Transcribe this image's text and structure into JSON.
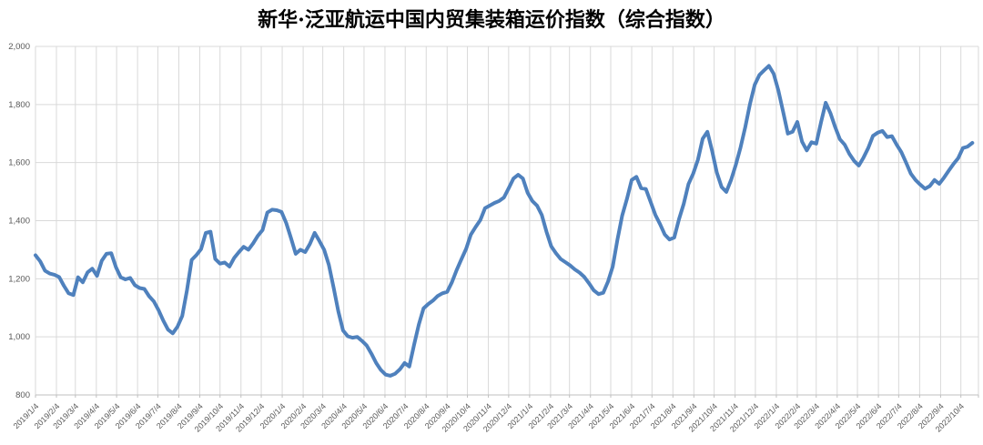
{
  "title": "新华·泛亚航运中国内贸集装箱运价指数（综合指数）",
  "colors": {
    "series_line": "#4f81bd",
    "gridline": "#d9d9d9",
    "axis_line": "#bfbfbf",
    "tick_label": "#595959",
    "title_text": "#000000",
    "background": "#ffffff"
  },
  "chart_data": {
    "type": "line",
    "title": "新华·泛亚航运中国内贸集装箱运价指数（综合指数）",
    "xlabel": "",
    "ylabel": "",
    "ylim": [
      800,
      2000
    ],
    "grid": true,
    "legend_position": "none",
    "y_ticks": [
      {
        "v": 2000,
        "label": "2,000"
      },
      {
        "v": 1800,
        "label": "1,800"
      },
      {
        "v": 1600,
        "label": "1,600"
      },
      {
        "v": 1400,
        "label": "1,400"
      },
      {
        "v": 1200,
        "label": "1,200"
      },
      {
        "v": 1000,
        "label": "1,000"
      },
      {
        "v": 800,
        "label": "800"
      }
    ],
    "x_ticks": [
      "2019/1/4",
      "2019/2/4",
      "2019/3/4",
      "2019/4/4",
      "2019/5/4",
      "2019/6/4",
      "2019/7/4",
      "2019/8/4",
      "2019/9/4",
      "2019/10/4",
      "2019/11/4",
      "2019/12/4",
      "2020/1/4",
      "2020/2/4",
      "2020/3/4",
      "2020/4/4",
      "2020/5/4",
      "2020/6/4",
      "2020/7/4",
      "2020/8/4",
      "2020/9/4",
      "2020/10/4",
      "2020/11/4",
      "2020/12/4",
      "2021/1/4",
      "2021/2/4",
      "2021/3/4",
      "2021/4/4",
      "2021/5/4",
      "2021/6/4",
      "2021/7/4",
      "2021/8/4",
      "2021/9/4",
      "2021/10/4",
      "2021/11/4",
      "2021/12/4",
      "2022/1/4",
      "2022/2/4",
      "2022/3/4",
      "2022/4/4",
      "2022/5/4",
      "2022/6/4",
      "2022/7/4",
      "2022/8/4",
      "2022/9/4",
      "2022/10/4"
    ],
    "series": [
      {
        "name": "综合指数",
        "color": "#4f81bd",
        "points": [
          [
            "2019/1/4",
            1281
          ],
          [
            "2019/1/11",
            1260
          ],
          [
            "2019/1/18",
            1228
          ],
          [
            "2019/1/25",
            1218
          ],
          [
            "2019/2/1",
            1214
          ],
          [
            "2019/2/8",
            1206
          ],
          [
            "2019/2/15",
            1176
          ],
          [
            "2019/2/22",
            1150
          ],
          [
            "2019/3/1",
            1144
          ],
          [
            "2019/3/8",
            1205
          ],
          [
            "2019/3/15",
            1188
          ],
          [
            "2019/3/22",
            1222
          ],
          [
            "2019/3/29",
            1235
          ],
          [
            "2019/4/5",
            1210
          ],
          [
            "2019/4/12",
            1262
          ],
          [
            "2019/4/19",
            1286
          ],
          [
            "2019/4/26",
            1288
          ],
          [
            "2019/5/3",
            1240
          ],
          [
            "2019/5/10",
            1205
          ],
          [
            "2019/5/17",
            1198
          ],
          [
            "2019/5/24",
            1203
          ],
          [
            "2019/5/31",
            1178
          ],
          [
            "2019/6/7",
            1168
          ],
          [
            "2019/6/14",
            1165
          ],
          [
            "2019/6/21",
            1140
          ],
          [
            "2019/6/28",
            1122
          ],
          [
            "2019/7/5",
            1092
          ],
          [
            "2019/7/12",
            1056
          ],
          [
            "2019/7/19",
            1025
          ],
          [
            "2019/7/26",
            1012
          ],
          [
            "2019/8/2",
            1035
          ],
          [
            "2019/8/9",
            1072
          ],
          [
            "2019/8/16",
            1160
          ],
          [
            "2019/8/23",
            1265
          ],
          [
            "2019/8/30",
            1282
          ],
          [
            "2019/9/6",
            1302
          ],
          [
            "2019/9/13",
            1358
          ],
          [
            "2019/9/20",
            1362
          ],
          [
            "2019/9/27",
            1268
          ],
          [
            "2019/10/4",
            1252
          ],
          [
            "2019/10/11",
            1256
          ],
          [
            "2019/10/18",
            1242
          ],
          [
            "2019/10/25",
            1272
          ],
          [
            "2019/11/1",
            1292
          ],
          [
            "2019/11/8",
            1310
          ],
          [
            "2019/11/15",
            1300
          ],
          [
            "2019/11/22",
            1322
          ],
          [
            "2019/11/29",
            1348
          ],
          [
            "2019/12/6",
            1368
          ],
          [
            "2019/12/13",
            1428
          ],
          [
            "2019/12/20",
            1438
          ],
          [
            "2019/12/27",
            1436
          ],
          [
            "2020/1/3",
            1430
          ],
          [
            "2020/1/10",
            1392
          ],
          [
            "2020/1/17",
            1340
          ],
          [
            "2020/1/24",
            1286
          ],
          [
            "2020/1/31",
            1300
          ],
          [
            "2020/2/7",
            1292
          ],
          [
            "2020/2/14",
            1320
          ],
          [
            "2020/2/21",
            1358
          ],
          [
            "2020/2/28",
            1330
          ],
          [
            "2020/3/6",
            1300
          ],
          [
            "2020/3/13",
            1248
          ],
          [
            "2020/3/20",
            1170
          ],
          [
            "2020/3/27",
            1088
          ],
          [
            "2020/4/3",
            1022
          ],
          [
            "2020/4/10",
            1002
          ],
          [
            "2020/4/17",
            997
          ],
          [
            "2020/4/24",
            1000
          ],
          [
            "2020/5/1",
            986
          ],
          [
            "2020/5/8",
            970
          ],
          [
            "2020/5/15",
            942
          ],
          [
            "2020/5/22",
            910
          ],
          [
            "2020/5/29",
            886
          ],
          [
            "2020/6/5",
            870
          ],
          [
            "2020/6/12",
            866
          ],
          [
            "2020/6/19",
            873
          ],
          [
            "2020/6/26",
            888
          ],
          [
            "2020/7/3",
            910
          ],
          [
            "2020/7/10",
            898
          ],
          [
            "2020/7/17",
            972
          ],
          [
            "2020/7/24",
            1042
          ],
          [
            "2020/7/31",
            1098
          ],
          [
            "2020/8/7",
            1113
          ],
          [
            "2020/8/14",
            1125
          ],
          [
            "2020/8/21",
            1141
          ],
          [
            "2020/8/28",
            1150
          ],
          [
            "2020/9/4",
            1155
          ],
          [
            "2020/9/11",
            1188
          ],
          [
            "2020/9/18",
            1230
          ],
          [
            "2020/9/25",
            1267
          ],
          [
            "2020/10/2",
            1303
          ],
          [
            "2020/10/9",
            1352
          ],
          [
            "2020/10/16",
            1378
          ],
          [
            "2020/10/23",
            1402
          ],
          [
            "2020/10/30",
            1443
          ],
          [
            "2020/11/6",
            1452
          ],
          [
            "2020/11/13",
            1461
          ],
          [
            "2020/11/20",
            1468
          ],
          [
            "2020/11/27",
            1480
          ],
          [
            "2020/12/4",
            1512
          ],
          [
            "2020/12/11",
            1545
          ],
          [
            "2020/12/18",
            1558
          ],
          [
            "2020/12/25",
            1545
          ],
          [
            "2021/1/1",
            1496
          ],
          [
            "2021/1/8",
            1468
          ],
          [
            "2021/1/15",
            1452
          ],
          [
            "2021/1/22",
            1420
          ],
          [
            "2021/1/29",
            1362
          ],
          [
            "2021/2/5",
            1312
          ],
          [
            "2021/2/12",
            1288
          ],
          [
            "2021/2/19",
            1268
          ],
          [
            "2021/2/26",
            1257
          ],
          [
            "2021/3/5",
            1246
          ],
          [
            "2021/3/12",
            1232
          ],
          [
            "2021/3/19",
            1221
          ],
          [
            "2021/3/26",
            1206
          ],
          [
            "2021/4/2",
            1184
          ],
          [
            "2021/4/9",
            1160
          ],
          [
            "2021/4/16",
            1147
          ],
          [
            "2021/4/23",
            1152
          ],
          [
            "2021/4/30",
            1190
          ],
          [
            "2021/5/7",
            1242
          ],
          [
            "2021/5/14",
            1335
          ],
          [
            "2021/5/21",
            1418
          ],
          [
            "2021/5/28",
            1475
          ],
          [
            "2021/6/4",
            1540
          ],
          [
            "2021/6/11",
            1551
          ],
          [
            "2021/6/18",
            1512
          ],
          [
            "2021/6/25",
            1509
          ],
          [
            "2021/7/2",
            1465
          ],
          [
            "2021/7/9",
            1420
          ],
          [
            "2021/7/16",
            1388
          ],
          [
            "2021/7/23",
            1352
          ],
          [
            "2021/7/30",
            1335
          ],
          [
            "2021/8/6",
            1342
          ],
          [
            "2021/8/13",
            1405
          ],
          [
            "2021/8/20",
            1458
          ],
          [
            "2021/8/27",
            1526
          ],
          [
            "2021/9/3",
            1562
          ],
          [
            "2021/9/10",
            1610
          ],
          [
            "2021/9/17",
            1682
          ],
          [
            "2021/9/24",
            1706
          ],
          [
            "2021/10/1",
            1640
          ],
          [
            "2021/10/8",
            1565
          ],
          [
            "2021/10/15",
            1516
          ],
          [
            "2021/10/22",
            1499
          ],
          [
            "2021/10/29",
            1540
          ],
          [
            "2021/11/5",
            1592
          ],
          [
            "2021/11/12",
            1652
          ],
          [
            "2021/11/19",
            1722
          ],
          [
            "2021/11/26",
            1802
          ],
          [
            "2021/12/3",
            1868
          ],
          [
            "2021/12/10",
            1902
          ],
          [
            "2021/12/17",
            1918
          ],
          [
            "2021/12/24",
            1933
          ],
          [
            "2021/12/31",
            1906
          ],
          [
            "2022/1/7",
            1848
          ],
          [
            "2022/1/14",
            1775
          ],
          [
            "2022/1/21",
            1700
          ],
          [
            "2022/1/28",
            1706
          ],
          [
            "2022/2/4",
            1740
          ],
          [
            "2022/2/11",
            1672
          ],
          [
            "2022/2/18",
            1642
          ],
          [
            "2022/2/25",
            1670
          ],
          [
            "2022/3/4",
            1665
          ],
          [
            "2022/3/11",
            1738
          ],
          [
            "2022/3/18",
            1806
          ],
          [
            "2022/3/25",
            1770
          ],
          [
            "2022/4/1",
            1722
          ],
          [
            "2022/4/8",
            1680
          ],
          [
            "2022/4/15",
            1662
          ],
          [
            "2022/4/22",
            1630
          ],
          [
            "2022/4/29",
            1606
          ],
          [
            "2022/5/6",
            1590
          ],
          [
            "2022/5/13",
            1617
          ],
          [
            "2022/5/20",
            1650
          ],
          [
            "2022/5/27",
            1692
          ],
          [
            "2022/6/3",
            1703
          ],
          [
            "2022/6/10",
            1709
          ],
          [
            "2022/6/17",
            1688
          ],
          [
            "2022/6/24",
            1691
          ],
          [
            "2022/7/1",
            1662
          ],
          [
            "2022/7/8",
            1636
          ],
          [
            "2022/7/15",
            1600
          ],
          [
            "2022/7/22",
            1562
          ],
          [
            "2022/7/29",
            1540
          ],
          [
            "2022/8/5",
            1524
          ],
          [
            "2022/8/12",
            1510
          ],
          [
            "2022/8/19",
            1519
          ],
          [
            "2022/8/26",
            1540
          ],
          [
            "2022/9/2",
            1527
          ],
          [
            "2022/9/9",
            1548
          ],
          [
            "2022/9/16",
            1572
          ],
          [
            "2022/9/23",
            1595
          ],
          [
            "2022/9/30",
            1615
          ],
          [
            "2022/10/7",
            1650
          ],
          [
            "2022/10/14",
            1655
          ],
          [
            "2022/10/21",
            1668
          ]
        ]
      }
    ]
  }
}
